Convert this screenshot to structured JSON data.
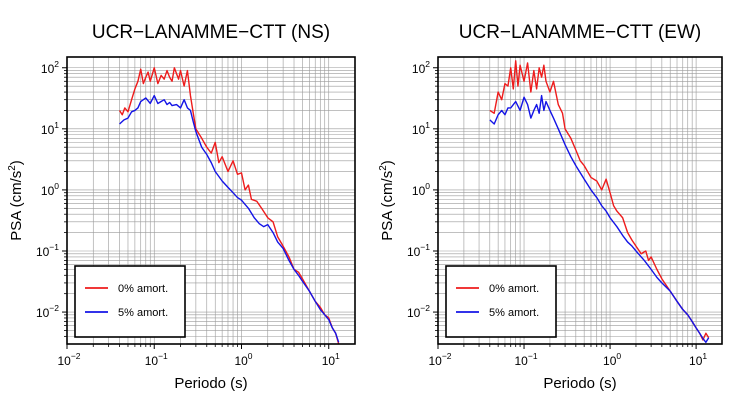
{
  "figure": {
    "colors": {
      "undamped": "#ee1c1c",
      "damped": "#1414e6",
      "grid": "#9a9a9a",
      "frame": "#000000"
    }
  },
  "chart_data": [
    {
      "type": "line",
      "title": "UCR−LANAMME−CTT (NS)",
      "xlabel": "Periodo (s)",
      "ylabel_main": "PSA (cm/s",
      "ylabel_sup": "2",
      "ylabel_close": ")",
      "xscale": "log",
      "yscale": "log",
      "xlim": [
        0.01,
        20
      ],
      "ylim": [
        0.003,
        150
      ],
      "x_ticks": [
        {
          "base": "10",
          "exp": "−2"
        },
        {
          "base": "10",
          "exp": "−1"
        },
        {
          "base": "10",
          "exp": "0"
        },
        {
          "base": "10",
          "exp": "1"
        }
      ],
      "y_ticks": [
        {
          "base": "10",
          "exp": "−2"
        },
        {
          "base": "10",
          "exp": "−1"
        },
        {
          "base": "10",
          "exp": "0"
        },
        {
          "base": "10",
          "exp": "1"
        },
        {
          "base": "10",
          "exp": "2"
        }
      ],
      "grid": true,
      "legend_position": "bottom-left",
      "series": [
        {
          "name": "0% amort.",
          "color": "#ee1c1c",
          "x": [
            0.04,
            0.043,
            0.046,
            0.05,
            0.055,
            0.06,
            0.065,
            0.07,
            0.075,
            0.08,
            0.085,
            0.09,
            0.1,
            0.11,
            0.12,
            0.13,
            0.14,
            0.15,
            0.16,
            0.17,
            0.18,
            0.19,
            0.2,
            0.22,
            0.24,
            0.26,
            0.28,
            0.3,
            0.35,
            0.4,
            0.45,
            0.5,
            0.55,
            0.6,
            0.7,
            0.8,
            0.9,
            1.0,
            1.1,
            1.2,
            1.3,
            1.5,
            1.7,
            2.0,
            2.3,
            2.6,
            3.0,
            3.5,
            4.0,
            4.5,
            5.0,
            6.0,
            7.0,
            8.0,
            9.0,
            10.0,
            11.0,
            12.0,
            13.0
          ],
          "y": [
            20,
            17,
            22,
            19,
            30,
            45,
            60,
            95,
            55,
            70,
            85,
            60,
            100,
            55,
            75,
            65,
            90,
            70,
            60,
            100,
            80,
            65,
            90,
            50,
            90,
            35,
            18,
            10,
            7,
            5,
            4,
            6,
            2.8,
            3.5,
            2.0,
            3.0,
            1.8,
            1.9,
            1.0,
            1.2,
            0.7,
            0.65,
            0.5,
            0.35,
            0.3,
            0.17,
            0.12,
            0.08,
            0.05,
            0.045,
            0.035,
            0.022,
            0.015,
            0.012,
            0.009,
            0.008,
            0.0055,
            0.0045,
            0.003
          ]
        },
        {
          "name": "5% amort.",
          "color": "#1414e6",
          "x": [
            0.04,
            0.045,
            0.05,
            0.055,
            0.06,
            0.065,
            0.07,
            0.08,
            0.09,
            0.1,
            0.11,
            0.12,
            0.13,
            0.14,
            0.15,
            0.16,
            0.18,
            0.2,
            0.22,
            0.24,
            0.26,
            0.28,
            0.3,
            0.35,
            0.4,
            0.45,
            0.5,
            0.6,
            0.7,
            0.8,
            0.9,
            1.0,
            1.2,
            1.4,
            1.6,
            1.8,
            2.0,
            2.3,
            2.6,
            3.0,
            3.5,
            4.0,
            4.5,
            5.0,
            6.0,
            7.0,
            8.0,
            9.0,
            10.0,
            11.0,
            12.0,
            13.0
          ],
          "y": [
            12,
            14,
            15,
            19,
            20,
            22,
            28,
            32,
            26,
            35,
            26,
            28,
            30,
            25,
            27,
            24,
            25,
            22,
            30,
            22,
            20,
            13,
            9,
            5,
            3.8,
            2.8,
            2.0,
            1.4,
            1.1,
            0.9,
            0.75,
            0.68,
            0.5,
            0.35,
            0.28,
            0.25,
            0.27,
            0.2,
            0.14,
            0.11,
            0.07,
            0.05,
            0.04,
            0.032,
            0.022,
            0.015,
            0.011,
            0.009,
            0.0075,
            0.0055,
            0.0045,
            0.0032
          ]
        }
      ]
    },
    {
      "type": "line",
      "title": "UCR−LANAMME−CTT (EW)",
      "xlabel": "Periodo (s)",
      "ylabel_main": "PSA (cm/s",
      "ylabel_sup": "2",
      "ylabel_close": ")",
      "xscale": "log",
      "yscale": "log",
      "xlim": [
        0.01,
        20
      ],
      "ylim": [
        0.003,
        150
      ],
      "x_ticks": [
        {
          "base": "10",
          "exp": "−2"
        },
        {
          "base": "10",
          "exp": "−1"
        },
        {
          "base": "10",
          "exp": "0"
        },
        {
          "base": "10",
          "exp": "1"
        }
      ],
      "y_ticks": [
        {
          "base": "10",
          "exp": "−2"
        },
        {
          "base": "10",
          "exp": "−1"
        },
        {
          "base": "10",
          "exp": "0"
        },
        {
          "base": "10",
          "exp": "1"
        },
        {
          "base": "10",
          "exp": "2"
        }
      ],
      "grid": true,
      "legend_position": "bottom-left",
      "series": [
        {
          "name": "0% amort.",
          "color": "#ee1c1c",
          "x": [
            0.04,
            0.045,
            0.05,
            0.055,
            0.06,
            0.065,
            0.07,
            0.075,
            0.08,
            0.085,
            0.09,
            0.1,
            0.11,
            0.12,
            0.13,
            0.14,
            0.15,
            0.16,
            0.17,
            0.18,
            0.2,
            0.22,
            0.25,
            0.28,
            0.3,
            0.35,
            0.4,
            0.45,
            0.5,
            0.6,
            0.7,
            0.8,
            0.9,
            1.0,
            1.1,
            1.2,
            1.4,
            1.6,
            1.8,
            2.0,
            2.3,
            2.6,
            2.8,
            3.0,
            3.5,
            4.0,
            5.0,
            6.0,
            7.0,
            8.0,
            9.0,
            10.0,
            11.0,
            12.0,
            13.0,
            14.0
          ],
          "y": [
            20,
            18,
            40,
            30,
            55,
            50,
            100,
            45,
            130,
            50,
            110,
            60,
            120,
            40,
            90,
            45,
            100,
            70,
            110,
            60,
            40,
            60,
            25,
            18,
            10,
            7,
            4.5,
            3.0,
            2.5,
            1.6,
            1.4,
            1.0,
            1.5,
            0.9,
            0.55,
            0.45,
            0.35,
            0.2,
            0.15,
            0.12,
            0.09,
            0.1,
            0.07,
            0.08,
            0.05,
            0.035,
            0.022,
            0.015,
            0.011,
            0.009,
            0.007,
            0.0055,
            0.0045,
            0.0035,
            0.0045,
            0.0038
          ]
        },
        {
          "name": "5% amort.",
          "color": "#1414e6",
          "x": [
            0.04,
            0.045,
            0.05,
            0.055,
            0.06,
            0.065,
            0.07,
            0.08,
            0.09,
            0.1,
            0.11,
            0.12,
            0.13,
            0.14,
            0.15,
            0.16,
            0.17,
            0.18,
            0.2,
            0.22,
            0.25,
            0.3,
            0.35,
            0.4,
            0.5,
            0.6,
            0.7,
            0.8,
            0.9,
            1.0,
            1.2,
            1.4,
            1.6,
            1.8,
            2.0,
            2.5,
            3.0,
            3.5,
            4.0,
            5.0,
            6.0,
            7.0,
            8.0,
            9.0,
            10.0,
            11.0,
            12.0,
            13.0,
            14.0
          ],
          "y": [
            14,
            12,
            17,
            20,
            17,
            22,
            22,
            28,
            20,
            33,
            25,
            15,
            20,
            25,
            18,
            35,
            20,
            28,
            20,
            15,
            10,
            5.5,
            3.5,
            2.5,
            1.5,
            1.0,
            0.75,
            0.55,
            0.45,
            0.35,
            0.25,
            0.18,
            0.14,
            0.12,
            0.1,
            0.07,
            0.05,
            0.037,
            0.03,
            0.022,
            0.015,
            0.011,
            0.009,
            0.007,
            0.0055,
            0.0045,
            0.0037,
            0.0032,
            0.0038
          ]
        }
      ]
    }
  ]
}
